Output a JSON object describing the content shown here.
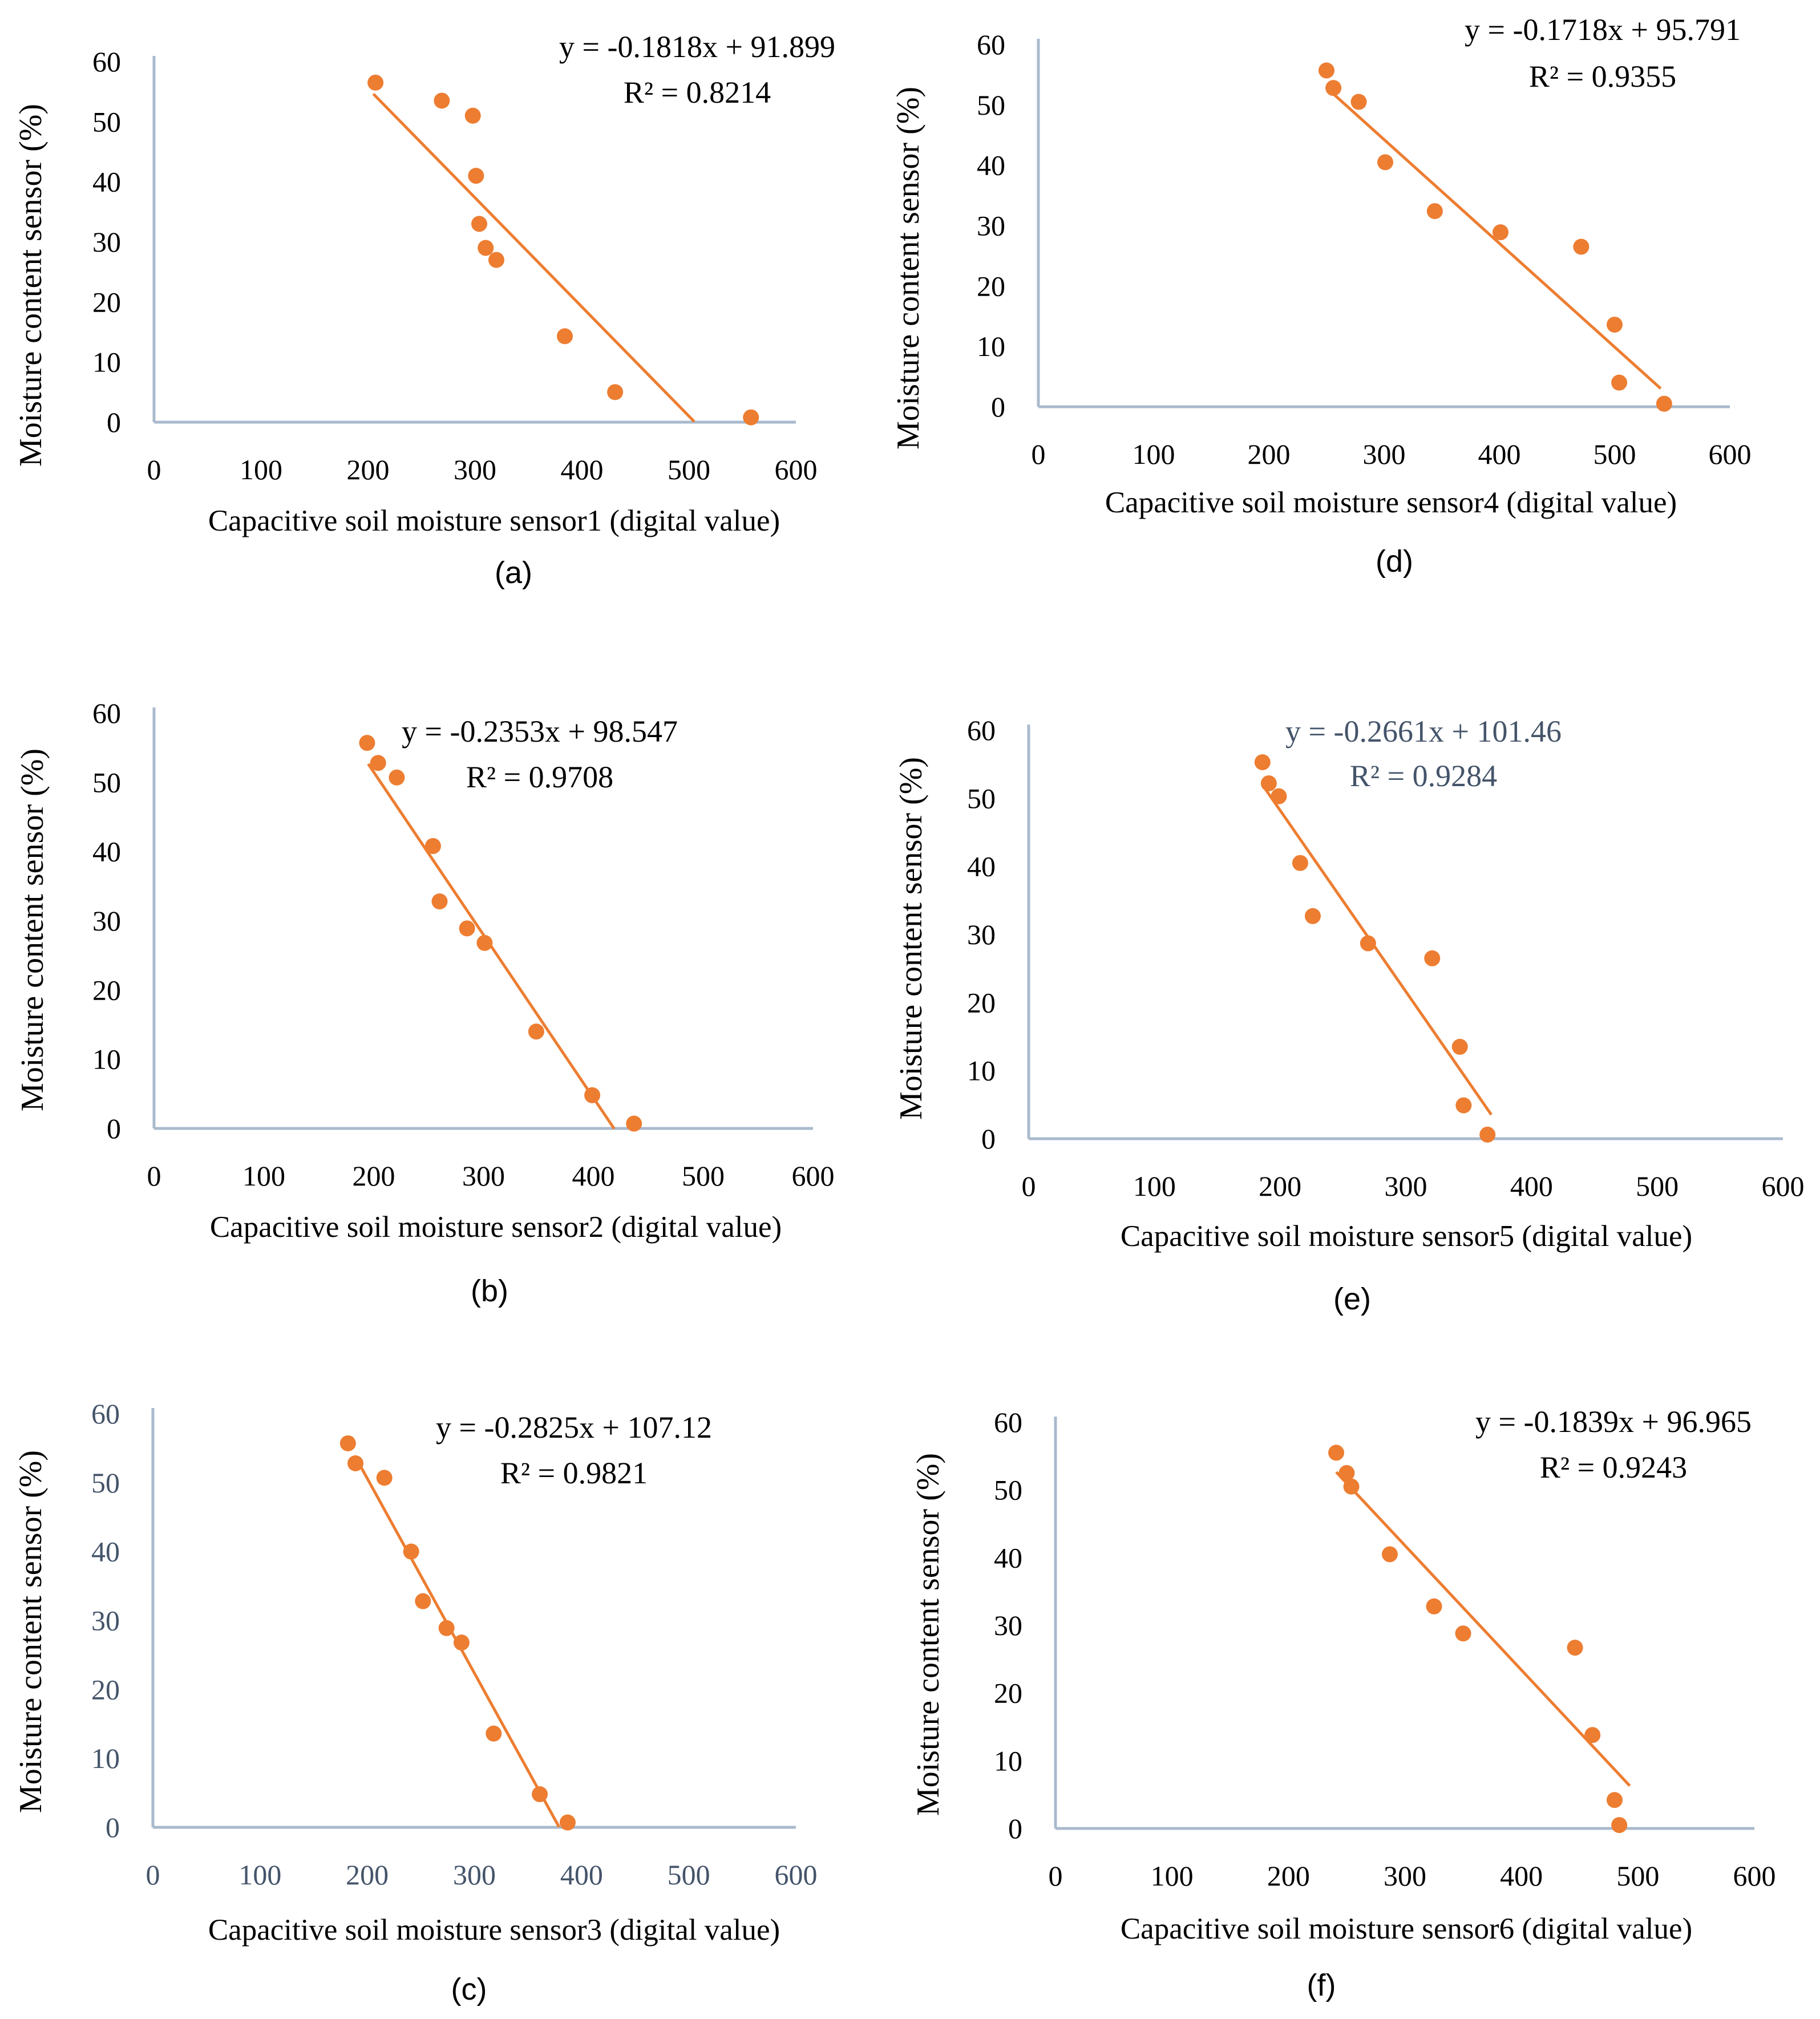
{
  "figure": {
    "y_axis_label": "Moisture content sensor (%)",
    "colors": {
      "marker": "#ED7D31",
      "trendline": "#ED7D31",
      "axis": "#A9BACD",
      "text": "#000000",
      "slate_text": "#44546A"
    }
  },
  "chart_data": [
    {
      "id": "a",
      "type": "scatter",
      "panel_label": "(a)",
      "xlabel": "Capacitive soil moisture sensor1 (digital value)",
      "ylabel": "Moisture content sensor (%)",
      "xlim": [
        0,
        600
      ],
      "ylim": [
        0,
        60
      ],
      "x_ticks": [
        "0",
        "100",
        "200",
        "300",
        "400",
        "500",
        "600"
      ],
      "y_ticks": [
        "0",
        "10",
        "20",
        "30",
        "40",
        "50",
        "60"
      ],
      "equation": "y = -0.1818x + 91.899",
      "r_squared": "R² = 0.8214",
      "trendline": {
        "slope": -0.1818,
        "intercept": 91.899,
        "x_range": [
          205,
          505
        ]
      },
      "points": [
        [
          207,
          56.5
        ],
        [
          269,
          53.5
        ],
        [
          298,
          51
        ],
        [
          301,
          41
        ],
        [
          304,
          33
        ],
        [
          310,
          29
        ],
        [
          320,
          27
        ],
        [
          384,
          14.3
        ],
        [
          431,
          5
        ],
        [
          558,
          0.8
        ]
      ]
    },
    {
      "id": "b",
      "type": "scatter",
      "panel_label": "(b)",
      "xlabel": "Capacitive soil moisture sensor2 (digital value)",
      "ylabel": "Moisture content sensor (%)",
      "xlim": [
        0,
        600
      ],
      "ylim": [
        0,
        60
      ],
      "x_ticks": [
        "0",
        "100",
        "200",
        "300",
        "400",
        "500",
        "600"
      ],
      "y_ticks": [
        "0",
        "10",
        "20",
        "30",
        "40",
        "50",
        "60"
      ],
      "equation": "y = -0.2353x + 98.547",
      "r_squared": "R² = 0.9708",
      "trendline": {
        "slope": -0.2353,
        "intercept": 98.547,
        "x_range": [
          195,
          419
        ]
      },
      "points": [
        [
          194,
          55.7
        ],
        [
          204,
          52.8
        ],
        [
          221,
          50.7
        ],
        [
          254,
          40.8
        ],
        [
          260,
          32.8
        ],
        [
          285,
          28.9
        ],
        [
          301,
          26.8
        ],
        [
          348,
          14
        ],
        [
          399,
          4.8
        ],
        [
          437,
          0.7
        ]
      ]
    },
    {
      "id": "c",
      "type": "scatter",
      "panel_label": "(c)",
      "xlabel": "Capacitive soil moisture sensor3 (digital value)",
      "ylabel": "Moisture content sensor (%)",
      "xlim": [
        0,
        600
      ],
      "ylim": [
        0,
        60
      ],
      "x_ticks": [
        "0",
        "100",
        "200",
        "300",
        "400",
        "500",
        "600"
      ],
      "y_ticks": [
        "0",
        "10",
        "20",
        "30",
        "40",
        "50",
        "60"
      ],
      "tick_color": "#44546A",
      "equation": "y = -0.2825x + 107.12",
      "r_squared": "R² = 0.9821",
      "trendline": {
        "slope": -0.2825,
        "intercept": 107.12,
        "x_range": [
          190,
          379
        ]
      },
      "points": [
        [
          182,
          55.7
        ],
        [
          189,
          52.8
        ],
        [
          216,
          50.7
        ],
        [
          241,
          40
        ],
        [
          252,
          32.8
        ],
        [
          274,
          28.9
        ],
        [
          288,
          26.8
        ],
        [
          318,
          13.6
        ],
        [
          361,
          4.8
        ],
        [
          387,
          0.7
        ]
      ]
    },
    {
      "id": "d",
      "type": "scatter",
      "panel_label": "(d)",
      "xlabel": "Capacitive soil moisture sensor4 (digital value)",
      "ylabel": "Moisture content sensor (%)",
      "xlim": [
        0,
        600
      ],
      "ylim": [
        0,
        60
      ],
      "x_ticks": [
        "0",
        "100",
        "200",
        "300",
        "400",
        "500",
        "600"
      ],
      "y_ticks": [
        "0",
        "10",
        "20",
        "30",
        "40",
        "50",
        "60"
      ],
      "equation": "y = -0.1718x + 95.791",
      "r_squared": "R² = 0.9355",
      "trendline": {
        "slope": -0.1718,
        "intercept": 95.791,
        "x_range": [
          252,
          540
        ]
      },
      "points": [
        [
          250,
          55.7
        ],
        [
          256,
          52.8
        ],
        [
          278,
          50.5
        ],
        [
          301,
          40.5
        ],
        [
          344,
          32.4
        ],
        [
          401,
          28.9
        ],
        [
          471,
          26.5
        ],
        [
          500,
          13.6
        ],
        [
          504,
          4
        ],
        [
          543,
          0.5
        ]
      ]
    },
    {
      "id": "e",
      "type": "scatter",
      "panel_label": "(e)",
      "xlabel": "Capacitive soil moisture sensor5 (digital value)",
      "ylabel": "Moisture content sensor (%)",
      "xlim": [
        0,
        600
      ],
      "ylim": [
        0,
        60
      ],
      "x_ticks": [
        "0",
        "100",
        "200",
        "300",
        "400",
        "500",
        "600"
      ],
      "y_ticks": [
        "0",
        "10",
        "20",
        "30",
        "40",
        "50",
        "60"
      ],
      "equation": "y = -0.2661x + 101.46",
      "r_squared": "R² = 0.9284",
      "equation_color": "#44546A",
      "trendline": {
        "slope": -0.2661,
        "intercept": 101.46,
        "x_range": [
          186,
          368
        ]
      },
      "points": [
        [
          186,
          55.3
        ],
        [
          191,
          52.2
        ],
        [
          199,
          50.3
        ],
        [
          216,
          40.5
        ],
        [
          226,
          32.7
        ],
        [
          270,
          28.7
        ],
        [
          321,
          26.5
        ],
        [
          343,
          13.5
        ],
        [
          346,
          4.9
        ],
        [
          365,
          0.6
        ]
      ]
    },
    {
      "id": "f",
      "type": "scatter",
      "panel_label": "(f)",
      "xlabel": "Capacitive soil moisture sensor6 (digital value)",
      "ylabel": "Moisture content sensor (%)",
      "xlim": [
        0,
        600
      ],
      "ylim": [
        0,
        60
      ],
      "x_ticks": [
        "0",
        "100",
        "200",
        "300",
        "400",
        "500",
        "600"
      ],
      "y_ticks": [
        "0",
        "10",
        "20",
        "30",
        "40",
        "50",
        "60"
      ],
      "equation": "y = -0.1839x + 96.965",
      "r_squared": "R² = 0.9243",
      "trendline": {
        "slope": -0.1839,
        "intercept": 96.965,
        "x_range": [
          241,
          493
        ]
      },
      "points": [
        [
          241,
          55.5
        ],
        [
          250,
          52.5
        ],
        [
          254,
          50.5
        ],
        [
          287,
          40.5
        ],
        [
          325,
          32.8
        ],
        [
          350,
          28.8
        ],
        [
          446,
          26.7
        ],
        [
          461,
          13.8
        ],
        [
          480,
          4.2
        ],
        [
          484,
          0.5
        ]
      ]
    }
  ]
}
